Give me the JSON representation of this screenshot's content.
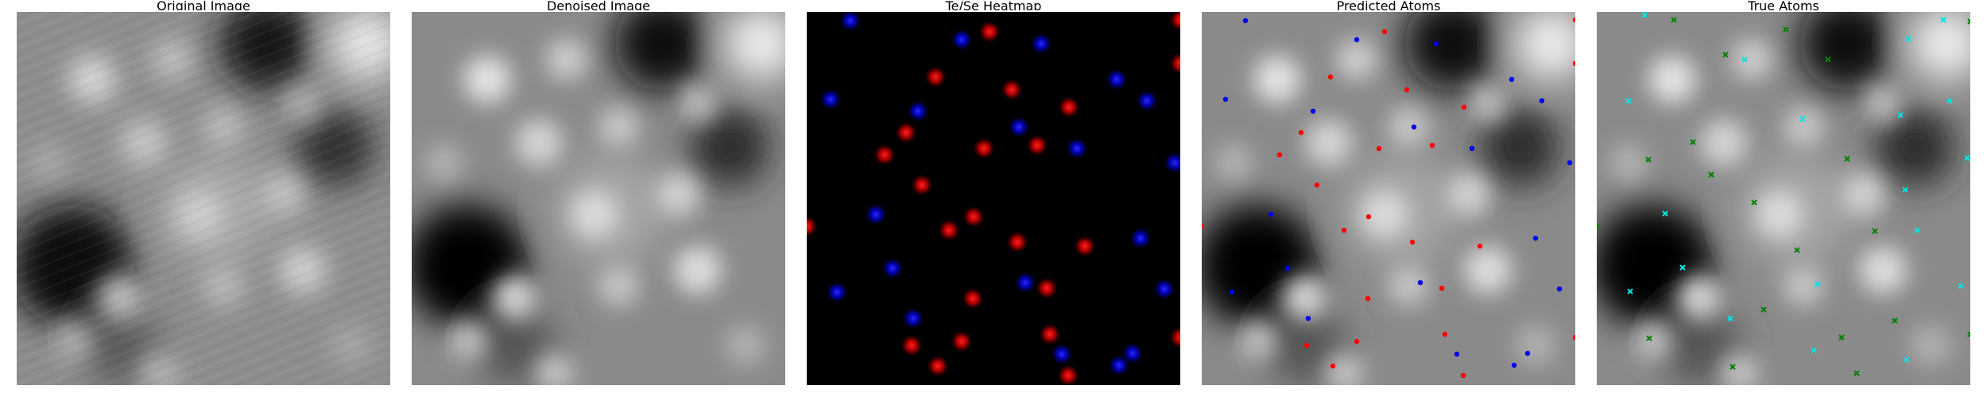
{
  "figure": {
    "panels": [
      {
        "id": "original",
        "title": "Original Image"
      },
      {
        "id": "denoised",
        "title": "Denoised Image"
      },
      {
        "id": "heatmap",
        "title": "Te/Se Heatmap"
      },
      {
        "id": "predicted",
        "title": "Predicted Atoms"
      },
      {
        "id": "true",
        "title": "True Atoms"
      }
    ]
  },
  "colors": {
    "background": "#000000",
    "te_heatmap": "#ff2020",
    "se_heatmap": "#2a2aff",
    "predicted_te": "#ff0000",
    "predicted_se": "#0000ee",
    "true_a": "#00e5e5",
    "true_b": "#008000"
  },
  "icons": {
    "predicted_marker": "dot-marker",
    "true_marker": "x-marker"
  }
}
